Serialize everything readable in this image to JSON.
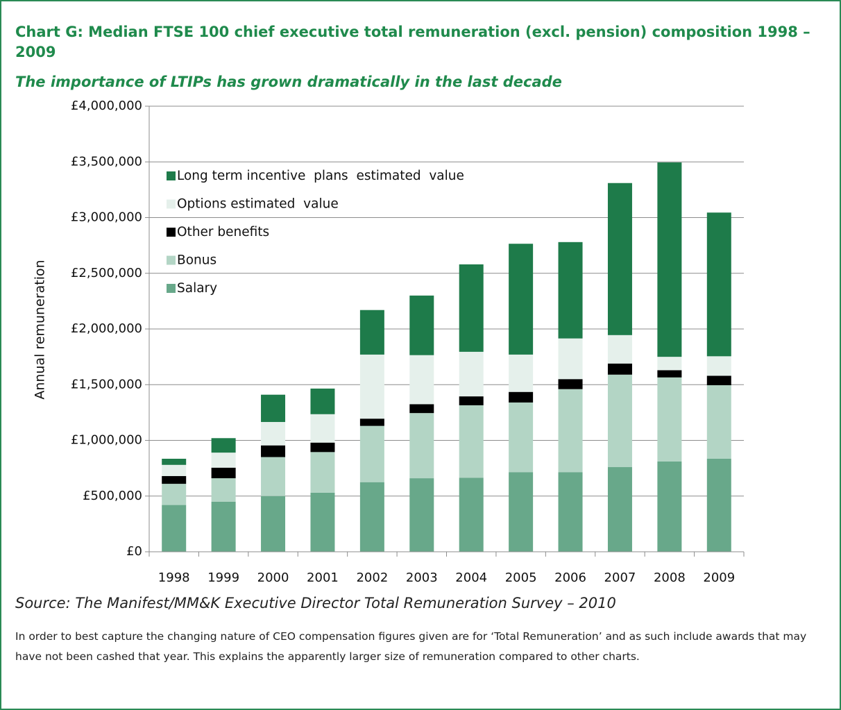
{
  "chart_data": {
    "type": "stacked_bar",
    "title": "Chart G: Median FTSE 100 chief executive total remuneration (excl. pension) composition 1998 – 2009",
    "subtitle": "The importance of LTIPs has grown dramatically in the last decade",
    "y_label": "Annual remuneration",
    "categories": [
      "1998",
      "1999",
      "2000",
      "2001",
      "2002",
      "2003",
      "2004",
      "2005",
      "2006",
      "2007",
      "2008",
      "2009"
    ],
    "series": [
      {
        "name": "Salary",
        "color": "#68a88a",
        "values": [
          420000,
          450000,
          500000,
          530000,
          625000,
          660000,
          665000,
          715000,
          715000,
          760000,
          810000,
          835000
        ]
      },
      {
        "name": "Bonus",
        "color": "#b3d5c5",
        "values": [
          190000,
          210000,
          350000,
          365000,
          505000,
          585000,
          650000,
          625000,
          745000,
          830000,
          755000,
          660000
        ]
      },
      {
        "name": "Other benefits",
        "color": "#000000",
        "values": [
          70000,
          95000,
          105000,
          85000,
          65000,
          80000,
          80000,
          95000,
          90000,
          100000,
          65000,
          85000
        ]
      },
      {
        "name": "Options estimated  value",
        "color": "#e5f0eb",
        "values": [
          100000,
          135000,
          210000,
          255000,
          575000,
          440000,
          400000,
          335000,
          365000,
          255000,
          120000,
          175000
        ]
      },
      {
        "name": "Long term incentive  plans  estimated  value",
        "color": "#1e7b4a",
        "values": [
          55000,
          130000,
          245000,
          230000,
          400000,
          535000,
          785000,
          995000,
          865000,
          1365000,
          1745000,
          1290000
        ]
      }
    ],
    "ylim": [
      0,
      4000000
    ],
    "yticks": [
      {
        "value": 0,
        "label": "£0"
      },
      {
        "value": 500000,
        "label": "£500,000"
      },
      {
        "value": 1000000,
        "label": "£1,000,000"
      },
      {
        "value": 1500000,
        "label": "£1,500,000"
      },
      {
        "value": 2000000,
        "label": "£2,000,000"
      },
      {
        "value": 2500000,
        "label": "£2,500,000"
      },
      {
        "value": 3000000,
        "label": "£3,000,000"
      },
      {
        "value": 3500000,
        "label": "£3,500,000"
      },
      {
        "value": 4000000,
        "label": "£4,000,000"
      }
    ],
    "grid": true,
    "legend": "upper left",
    "source": "Source: The Manifest/MM&K Executive Director Total Remuneration Survey – 2010",
    "note": "In order to best capture the changing nature of CEO compensation figures given are for ‘Total Remuneration’ and as such include awards that may have not been cashed that year. This explains the apparently larger size of remuneration compared to other charts."
  }
}
